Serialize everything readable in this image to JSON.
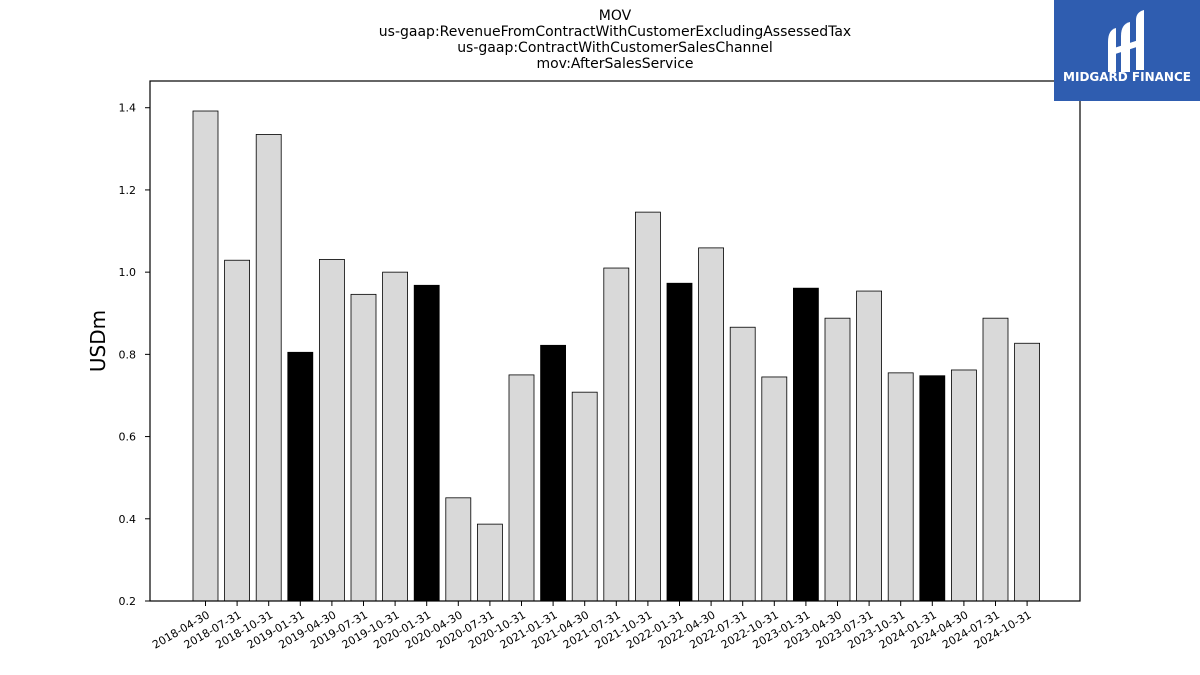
{
  "chart_data": {
    "type": "bar",
    "title_lines": [
      "MOV",
      "us-gaap:RevenueFromContractWithCustomerExcludingAssessedTax",
      "us-gaap:ContractWithCustomerSalesChannel",
      "mov:AfterSalesService"
    ],
    "ylabel": "USDm",
    "xlabel": "",
    "ylim": [
      0.2,
      1.465
    ],
    "yticks": [
      0.2,
      0.4,
      0.6,
      0.8,
      1.0,
      1.2,
      1.4
    ],
    "ytick_labels": [
      "0.2",
      "0.4",
      "0.6",
      "0.8",
      "1.0",
      "1.2",
      "1.4"
    ],
    "grid": false,
    "colors": {
      "normal": "#d9d9d9",
      "highlight": "#000000",
      "edge": "#000000"
    },
    "categories": [
      "2018-04-30",
      "2018-07-31",
      "2018-10-31",
      "2019-01-31",
      "2019-04-30",
      "2019-07-31",
      "2019-10-31",
      "2020-01-31",
      "2020-04-30",
      "2020-07-31",
      "2020-10-31",
      "2021-01-31",
      "2021-04-30",
      "2021-07-31",
      "2021-10-31",
      "2022-01-31",
      "2022-04-30",
      "2022-07-31",
      "2022-10-31",
      "2023-01-31",
      "2023-04-30",
      "2023-07-31",
      "2023-10-31",
      "2024-01-31",
      "2024-04-30",
      "2024-07-31",
      "2024-10-31"
    ],
    "values": [
      1.392,
      1.029,
      1.335,
      0.805,
      1.031,
      0.946,
      1.0,
      0.968,
      0.451,
      0.387,
      0.75,
      0.822,
      0.708,
      1.01,
      1.146,
      0.973,
      1.059,
      0.866,
      0.745,
      0.961,
      0.888,
      0.954,
      0.755,
      0.748,
      0.762,
      0.888,
      0.827
    ],
    "highlight": [
      false,
      false,
      false,
      true,
      false,
      false,
      false,
      true,
      false,
      false,
      false,
      true,
      false,
      false,
      false,
      true,
      false,
      false,
      false,
      true,
      false,
      false,
      false,
      true,
      false,
      false,
      false
    ]
  },
  "logo": {
    "text": "MIDGARD FINANCE",
    "background": "#2f5db0",
    "icon": "midgard-logo-icon"
  }
}
